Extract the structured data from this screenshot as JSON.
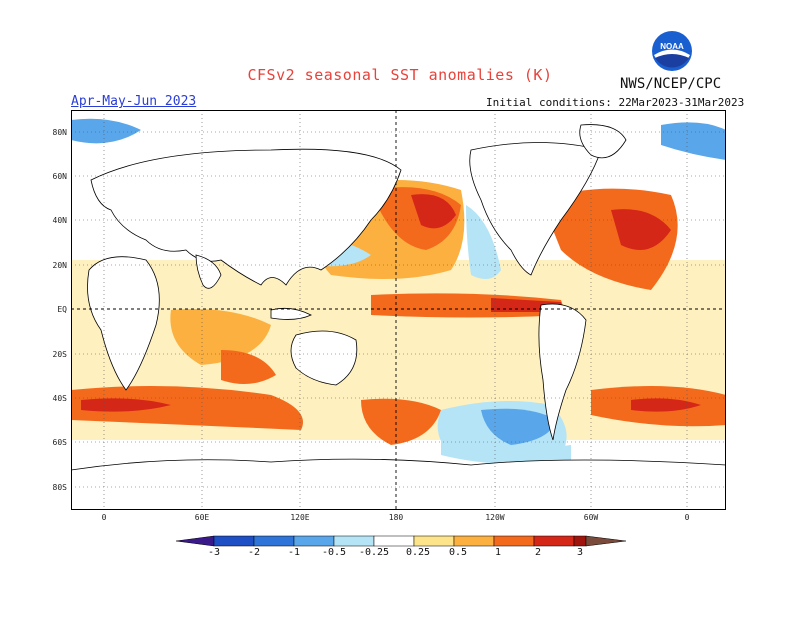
{
  "title": "CFSv2 seasonal SST anomalies (K)",
  "agency": "NWS/NCEP/CPC",
  "logo_text": "NOAA",
  "period": "Apr-May-Jun 2023",
  "initial_conditions": "Initial conditions: 22Mar2023-31Mar2023",
  "lat_labels": [
    "80N",
    "60N",
    "40N",
    "20N",
    "EQ",
    "20S",
    "40S",
    "60S",
    "80S"
  ],
  "lon_labels": [
    "0",
    "60E",
    "120E",
    "180",
    "120W",
    "60W",
    "0"
  ],
  "colorbar_labels": [
    "-3",
    "-2",
    "-1",
    "-0.5",
    "-0.25",
    "0.25",
    "0.5",
    "1",
    "2",
    "3"
  ],
  "colors": {
    "below_-3": "#3a1a8a",
    "-3_-2": "#1f4fc4",
    "-2_-1": "#2f74d8",
    "-1_-0.5": "#5aa6ea",
    "-0.5_-0.25": "#b4e4f6",
    "neutral": "#ffffff",
    "0.25_0.5": "#fde38a",
    "0.5_1": "#fbb040",
    "1_2": "#f36a1d",
    "2_3": "#d42718",
    "above_3": "#a0140e",
    "extreme": "#7a4a3a"
  }
}
